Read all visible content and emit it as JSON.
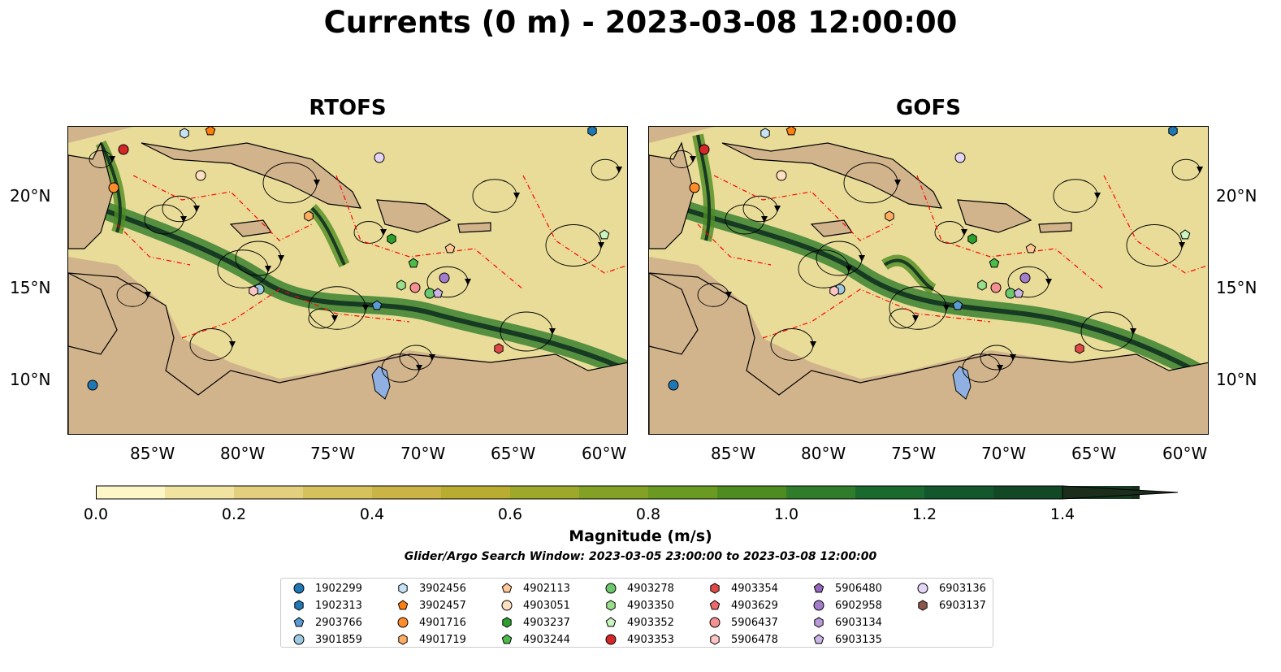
{
  "title": "Currents (0 m) - 2023-03-08 12:00:00",
  "panels": [
    {
      "title": "RTOFS"
    },
    {
      "title": "GOFS"
    }
  ],
  "axes": {
    "lon_ticks": [
      "85°W",
      "80°W",
      "75°W",
      "70°W",
      "65°W",
      "60°W"
    ],
    "lat_ticks": [
      "20°N",
      "15°N",
      "10°N"
    ]
  },
  "colorbar": {
    "label": "Magnitude (m/s)",
    "ticks": [
      "0.0",
      "0.2",
      "0.4",
      "0.6",
      "0.8",
      "1.0",
      "1.2",
      "1.4"
    ],
    "colors": [
      "#fdf7c7",
      "#f0e4a0",
      "#e3d07e",
      "#d6c25d",
      "#c9b445",
      "#b8ad30",
      "#9ea82a",
      "#83a124",
      "#6b9a22",
      "#4e8c22",
      "#2f7c2a",
      "#1a6a30",
      "#13582c",
      "#134826",
      "#163a22",
      "#1b2e1c"
    ]
  },
  "search_window": "Glider/Argo Search Window: 2023-03-05 23:00:00 to 2023-03-08 12:00:00",
  "legend": [
    {
      "id": "1902299",
      "marker": "circle",
      "color": "#1f77b4"
    },
    {
      "id": "1902313",
      "marker": "hexagon",
      "color": "#1f77b4"
    },
    {
      "id": "2903766",
      "marker": "pentagon",
      "color": "#5b9bd5"
    },
    {
      "id": "3901859",
      "marker": "circle",
      "color": "#9ecae1"
    },
    {
      "id": "3902456",
      "marker": "hexagon",
      "color": "#c6e2f5"
    },
    {
      "id": "3902457",
      "marker": "pentagon",
      "color": "#ff7f0e"
    },
    {
      "id": "4901716",
      "marker": "circle",
      "color": "#ff8c2a"
    },
    {
      "id": "4901719",
      "marker": "hexagon",
      "color": "#ffad60"
    },
    {
      "id": "4902113",
      "marker": "pentagon",
      "color": "#ffc896"
    },
    {
      "id": "4903051",
      "marker": "circle",
      "color": "#ffe0c0"
    },
    {
      "id": "4903237",
      "marker": "hexagon",
      "color": "#2ca02c"
    },
    {
      "id": "4903244",
      "marker": "pentagon",
      "color": "#4cbb4c"
    },
    {
      "id": "4903278",
      "marker": "circle",
      "color": "#6cc86c"
    },
    {
      "id": "4903350",
      "marker": "hexagon",
      "color": "#98df8a"
    },
    {
      "id": "4903352",
      "marker": "pentagon",
      "color": "#c8f5c0"
    },
    {
      "id": "4903353",
      "marker": "circle",
      "color": "#d62728"
    },
    {
      "id": "4903354",
      "marker": "hexagon",
      "color": "#e04848"
    },
    {
      "id": "4903629",
      "marker": "pentagon",
      "color": "#ec6a6a"
    },
    {
      "id": "5906437",
      "marker": "circle",
      "color": "#f49090"
    },
    {
      "id": "5906478",
      "marker": "hexagon",
      "color": "#ffc4c4"
    },
    {
      "id": "5906480",
      "marker": "pentagon",
      "color": "#9467bd"
    },
    {
      "id": "6902958",
      "marker": "circle",
      "color": "#a47ccc"
    },
    {
      "id": "6903134",
      "marker": "hexagon",
      "color": "#b89ad8"
    },
    {
      "id": "6903135",
      "marker": "pentagon",
      "color": "#cbb4e6"
    },
    {
      "id": "6903136",
      "marker": "circle",
      "color": "#e4d4f6"
    },
    {
      "id": "6903137",
      "marker": "hexagon",
      "color": "#8c564b"
    }
  ],
  "colors": {
    "land": "#d2b48c",
    "eez_line": "#ff0000",
    "lake": "#8fb0e0"
  }
}
